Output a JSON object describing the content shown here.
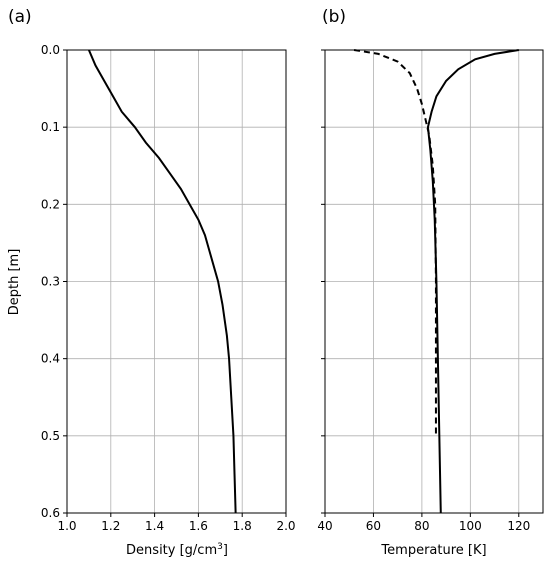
{
  "chart_data": [
    {
      "type": "line",
      "panel_label": "(a)",
      "xlabel_main": "Density [g/cm",
      "xlabel_sup": "3",
      "xlabel_tail": "]",
      "ylabel": "Depth [m]",
      "xlim": [
        1.0,
        2.0
      ],
      "ylim": [
        0.6,
        0.0
      ],
      "x_ticks": [
        "1.0",
        "1.2",
        "1.4",
        "1.6",
        "1.8",
        "2.0"
      ],
      "y_ticks": [
        "0.0",
        "0.1",
        "0.2",
        "0.3",
        "0.4",
        "0.5",
        "0.6"
      ],
      "grid": true,
      "series": [
        {
          "style": "solid",
          "color": "#000000",
          "points": [
            [
              1.1,
              0.0
            ],
            [
              1.13,
              0.02
            ],
            [
              1.17,
              0.04
            ],
            [
              1.21,
              0.06
            ],
            [
              1.25,
              0.08
            ],
            [
              1.31,
              0.1
            ],
            [
              1.36,
              0.12
            ],
            [
              1.42,
              0.14
            ],
            [
              1.47,
              0.16
            ],
            [
              1.52,
              0.18
            ],
            [
              1.56,
              0.2
            ],
            [
              1.6,
              0.22
            ],
            [
              1.63,
              0.24
            ],
            [
              1.65,
              0.26
            ],
            [
              1.67,
              0.28
            ],
            [
              1.69,
              0.3
            ],
            [
              1.71,
              0.33
            ],
            [
              1.73,
              0.37
            ],
            [
              1.74,
              0.4
            ],
            [
              1.75,
              0.45
            ],
            [
              1.76,
              0.5
            ],
            [
              1.765,
              0.55
            ],
            [
              1.77,
              0.6
            ]
          ]
        }
      ]
    },
    {
      "type": "line",
      "panel_label": "(b)",
      "xlabel": "Temperature [K]",
      "xlim": [
        40,
        130
      ],
      "ylim": [
        0.6,
        0.0
      ],
      "x_ticks": [
        "40",
        "60",
        "80",
        "100",
        "120"
      ],
      "x_tick_values": [
        40,
        60,
        80,
        100,
        120
      ],
      "grid": true,
      "series": [
        {
          "style": "solid",
          "color": "#000000",
          "points": [
            [
              120,
              0.0
            ],
            [
              110,
              0.005
            ],
            [
              102,
              0.012
            ],
            [
              95,
              0.025
            ],
            [
              90,
              0.04
            ],
            [
              86,
              0.06
            ],
            [
              84,
              0.08
            ],
            [
              82.5,
              0.1
            ],
            [
              83.5,
              0.13
            ],
            [
              84.5,
              0.17
            ],
            [
              85.3,
              0.22
            ],
            [
              86,
              0.3
            ],
            [
              86.6,
              0.4
            ],
            [
              87.2,
              0.5
            ],
            [
              87.8,
              0.6
            ]
          ]
        },
        {
          "style": "dashed",
          "color": "#000000",
          "points": [
            [
              52,
              0.0
            ],
            [
              62,
              0.005
            ],
            [
              70,
              0.015
            ],
            [
              75,
              0.03
            ],
            [
              78,
              0.05
            ],
            [
              80,
              0.07
            ],
            [
              81.5,
              0.09
            ],
            [
              83,
              0.11
            ],
            [
              84.5,
              0.15
            ],
            [
              85.5,
              0.2
            ],
            [
              85.8,
              0.3
            ],
            [
              85.8,
              0.4
            ],
            [
              85.8,
              0.5
            ]
          ]
        }
      ]
    }
  ]
}
